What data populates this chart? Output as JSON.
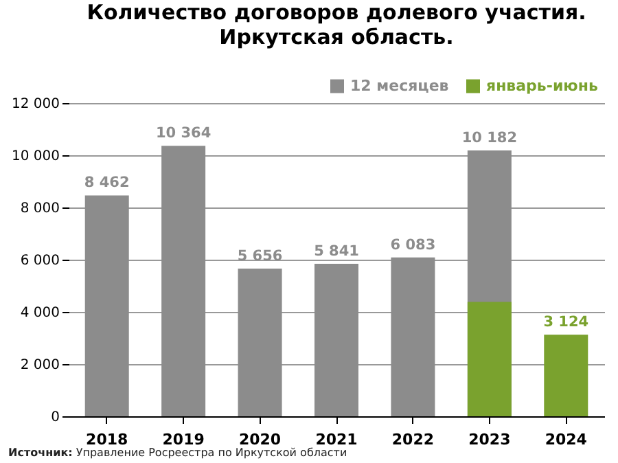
{
  "chart_data": {
    "type": "bar",
    "title": "Количество договоров долевого участия.\nИркутская область.",
    "categories": [
      "2018",
      "2019",
      "2020",
      "2021",
      "2022",
      "2023",
      "2024"
    ],
    "series": [
      {
        "name": "12 месяцев",
        "color": "#8c8c8c",
        "values": [
          8462,
          10364,
          5656,
          5841,
          6083,
          10182,
          null
        ],
        "value_labels": [
          "8 462",
          "10 364",
          "5 656",
          "5 841",
          "6 083",
          "10 182",
          null
        ]
      },
      {
        "name": "январь-июнь",
        "color": "#7aa22e",
        "values": [
          null,
          null,
          null,
          null,
          null,
          4380,
          3124
        ],
        "value_labels": [
          null,
          null,
          null,
          null,
          null,
          null,
          "3 124"
        ]
      }
    ],
    "ylim": [
      0,
      12000
    ],
    "yticks": [
      {
        "value": 0,
        "label": "0"
      },
      {
        "value": 2000,
        "label": "2 000"
      },
      {
        "value": 4000,
        "label": "4 000"
      },
      {
        "value": 6000,
        "label": "6 000"
      },
      {
        "value": 8000,
        "label": "8 000"
      },
      {
        "value": 10000,
        "label": "10 000"
      },
      {
        "value": 12000,
        "label": "12 000"
      }
    ],
    "grid": "y",
    "legend": "top right",
    "annotations": [
      "Источник: Управление Росреестра по Иркутской области"
    ]
  }
}
